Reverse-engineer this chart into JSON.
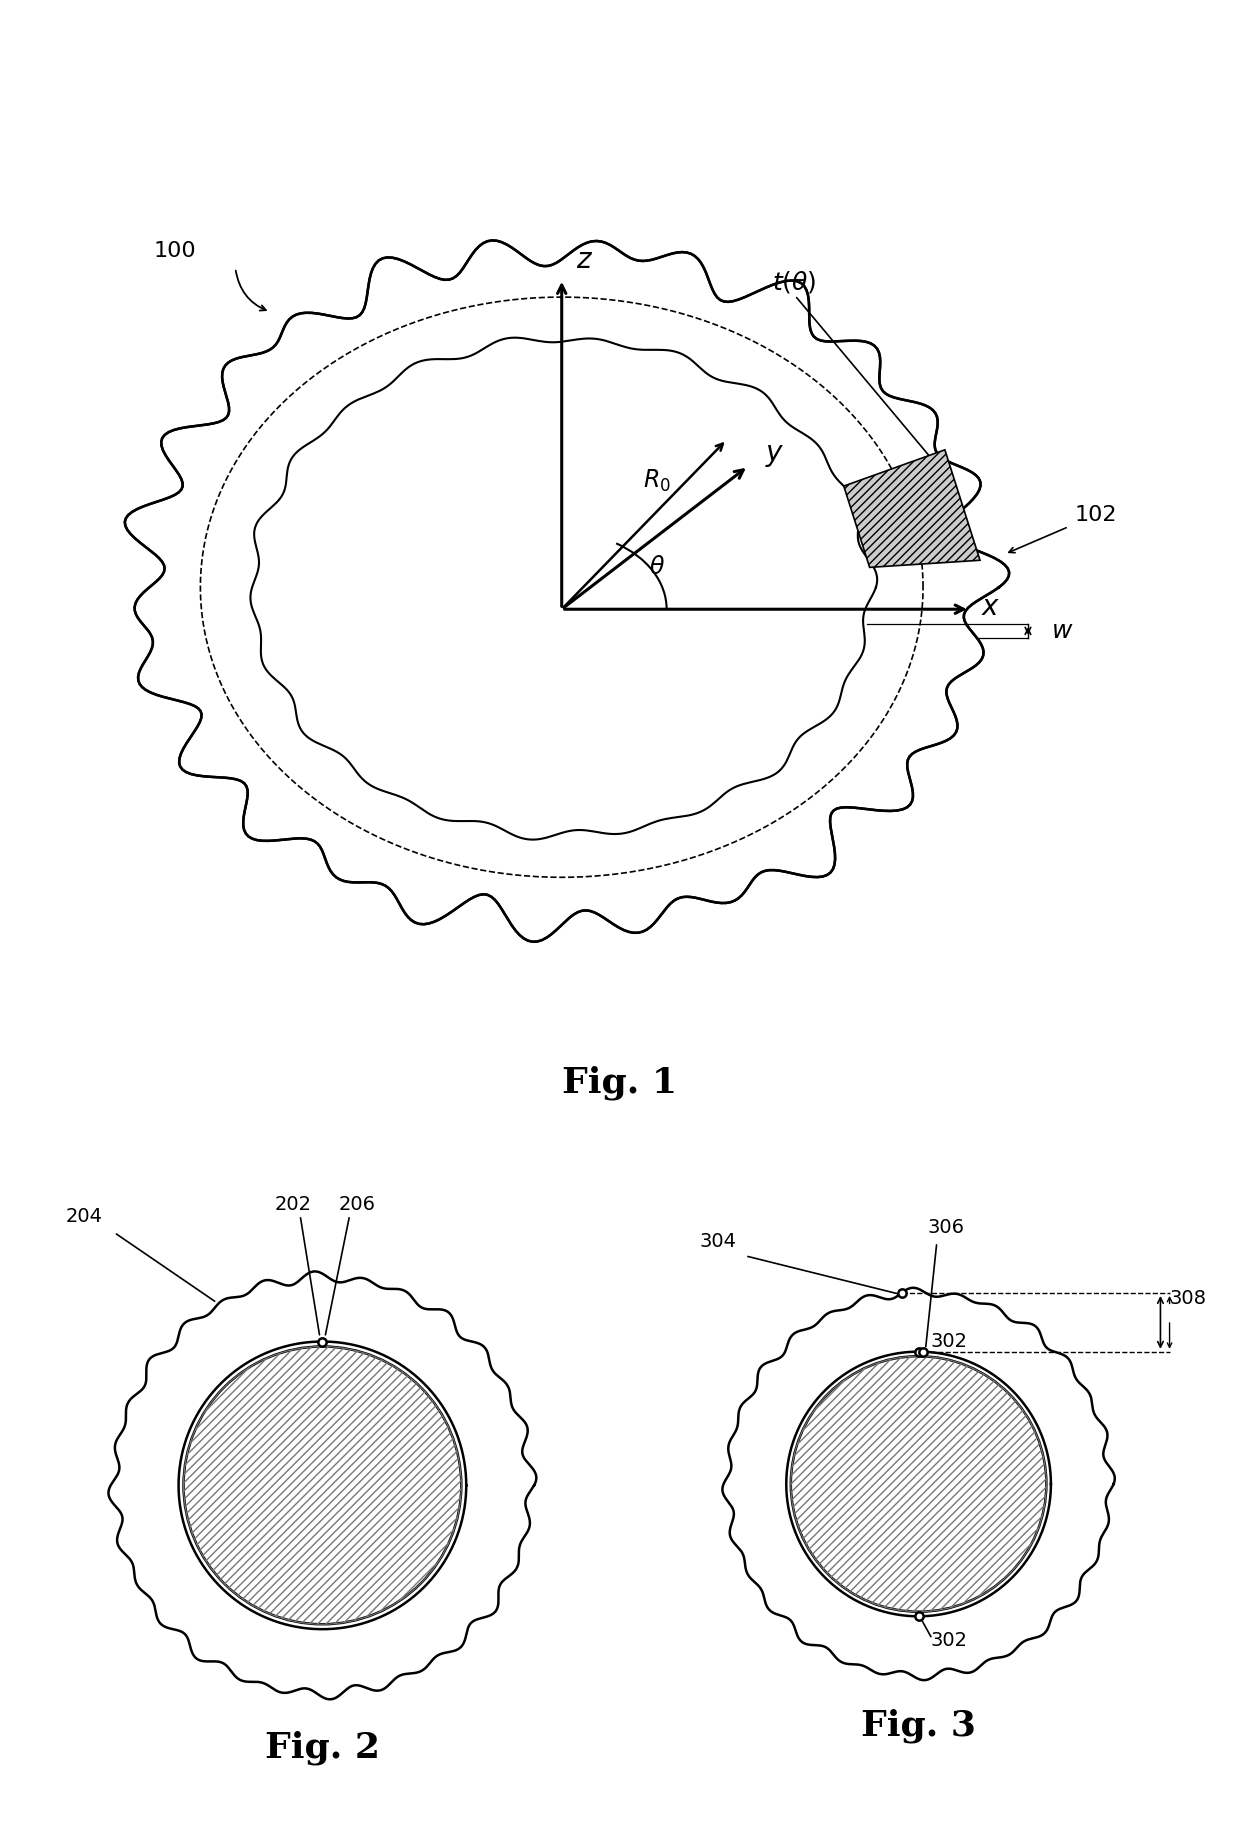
{
  "fig1_label": "Fig. 1",
  "fig2_label": "Fig. 2",
  "fig3_label": "Fig. 3",
  "label_100": "100",
  "label_102": "102",
  "label_202": "202",
  "label_204": "204",
  "label_206": "206",
  "label_302": "302",
  "label_304": "304",
  "label_306": "306",
  "label_308": "308",
  "bg_color": "#ffffff",
  "line_color": "#000000"
}
